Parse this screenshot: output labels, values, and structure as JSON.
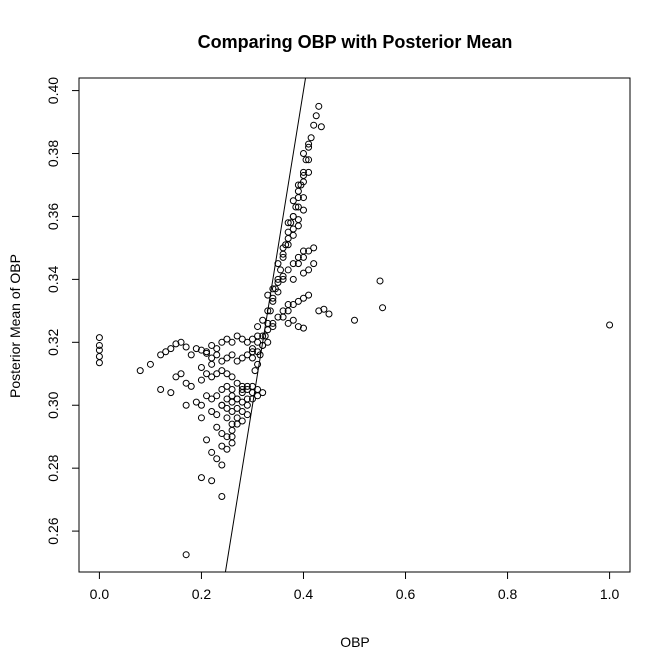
{
  "chart_data": {
    "type": "scatter",
    "title": "Comparing OBP with Posterior Mean",
    "xlabel": "OBP",
    "ylabel": "Posterior Mean of OBP",
    "xlim": [
      -0.04,
      1.04
    ],
    "ylim": [
      0.247,
      0.404
    ],
    "x_ticks": [
      0.0,
      0.2,
      0.4,
      0.6,
      0.8,
      1.0
    ],
    "x_tick_labels": [
      "0.0",
      "0.2",
      "0.4",
      "0.6",
      "0.8",
      "1.0"
    ],
    "y_ticks": [
      0.26,
      0.28,
      0.3,
      0.32,
      0.34,
      0.36,
      0.38,
      0.4
    ],
    "y_tick_labels": [
      "0.26",
      "0.28",
      "0.30",
      "0.32",
      "0.34",
      "0.36",
      "0.38",
      "0.40"
    ],
    "grid": false,
    "legend": "none",
    "reference_line": {
      "slope": 1,
      "intercept": 0
    },
    "series": [
      {
        "marker": "open-circle",
        "x": [
          0.0,
          0.0,
          0.0,
          0.0,
          0.0,
          0.08,
          0.1,
          0.12,
          0.13,
          0.14,
          0.15,
          0.16,
          0.17,
          0.18,
          0.19,
          0.2,
          0.21,
          0.22,
          0.23,
          0.12,
          0.14,
          0.15,
          0.16,
          0.17,
          0.18,
          0.2,
          0.21,
          0.22,
          0.23,
          0.24,
          0.25,
          0.26,
          0.17,
          0.19,
          0.21,
          0.22,
          0.23,
          0.24,
          0.25,
          0.26,
          0.27,
          0.28,
          0.2,
          0.22,
          0.23,
          0.24,
          0.25,
          0.26,
          0.27,
          0.28,
          0.29,
          0.24,
          0.25,
          0.26,
          0.27,
          0.28,
          0.29,
          0.3,
          0.25,
          0.26,
          0.27,
          0.28,
          0.29,
          0.3,
          0.31,
          0.26,
          0.27,
          0.28,
          0.29,
          0.3,
          0.31,
          0.32,
          0.21,
          0.22,
          0.23,
          0.24,
          0.25,
          0.26,
          0.27,
          0.28,
          0.29,
          0.3,
          0.31,
          0.2,
          0.22,
          0.24,
          0.25,
          0.26,
          0.27,
          0.28,
          0.29,
          0.3,
          0.23,
          0.24,
          0.25,
          0.26,
          0.27,
          0.28,
          0.29,
          0.21,
          0.22,
          0.23,
          0.24,
          0.25,
          0.26,
          0.2,
          0.22,
          0.24,
          0.26,
          0.17,
          0.24,
          0.2,
          0.3,
          0.31,
          0.32,
          0.33,
          0.34,
          0.35,
          0.36,
          0.37,
          0.31,
          0.32,
          0.33,
          0.34,
          0.35,
          0.36,
          0.3,
          0.31,
          0.32,
          0.33,
          0.34,
          0.36,
          0.37,
          0.38,
          0.39,
          0.4,
          0.37,
          0.38,
          0.39,
          0.4,
          0.41,
          0.38,
          0.4,
          0.41,
          0.42,
          0.39,
          0.4,
          0.41,
          0.42,
          0.43,
          0.44,
          0.45,
          0.5,
          0.55,
          0.555,
          1.0,
          0.33,
          0.34,
          0.35,
          0.36,
          0.37,
          0.38,
          0.39,
          0.4,
          0.35,
          0.36,
          0.37,
          0.38,
          0.39,
          0.36,
          0.37,
          0.38,
          0.39,
          0.4,
          0.37,
          0.38,
          0.39,
          0.4,
          0.38,
          0.39,
          0.4,
          0.41,
          0.39,
          0.4,
          0.41,
          0.4,
          0.41
        ],
        "y": [
          0.3215,
          0.319,
          0.3175,
          0.3155,
          0.3135,
          0.311,
          0.313,
          0.316,
          0.317,
          0.318,
          0.3195,
          0.32,
          0.3185,
          0.316,
          0.318,
          0.3175,
          0.3165,
          0.315,
          0.316,
          0.305,
          0.304,
          0.309,
          0.31,
          0.307,
          0.306,
          0.308,
          0.31,
          0.309,
          0.31,
          0.311,
          0.31,
          0.309,
          0.3,
          0.301,
          0.303,
          0.302,
          0.303,
          0.305,
          0.306,
          0.305,
          0.307,
          0.306,
          0.3,
          0.298,
          0.297,
          0.3,
          0.302,
          0.303,
          0.302,
          0.305,
          0.306,
          0.3,
          0.299,
          0.301,
          0.302,
          0.304,
          0.305,
          0.306,
          0.296,
          0.298,
          0.299,
          0.301,
          0.302,
          0.304,
          0.305,
          0.294,
          0.296,
          0.298,
          0.3,
          0.302,
          0.303,
          0.304,
          0.317,
          0.319,
          0.318,
          0.32,
          0.321,
          0.32,
          0.322,
          0.321,
          0.32,
          0.321,
          0.322,
          0.312,
          0.313,
          0.314,
          0.315,
          0.316,
          0.314,
          0.315,
          0.316,
          0.317,
          0.293,
          0.291,
          0.29,
          0.292,
          0.294,
          0.295,
          0.297,
          0.289,
          0.285,
          0.283,
          0.287,
          0.286,
          0.288,
          0.277,
          0.276,
          0.271,
          0.29,
          0.2525,
          0.281,
          0.296,
          0.318,
          0.32,
          0.322,
          0.324,
          0.326,
          0.328,
          0.33,
          0.332,
          0.325,
          0.327,
          0.33,
          0.333,
          0.336,
          0.34,
          0.315,
          0.317,
          0.319,
          0.32,
          0.325,
          0.328,
          0.326,
          0.327,
          0.325,
          0.3245,
          0.33,
          0.332,
          0.333,
          0.334,
          0.335,
          0.34,
          0.342,
          0.343,
          0.345,
          0.345,
          0.347,
          0.349,
          0.35,
          0.33,
          0.3305,
          0.329,
          0.327,
          0.3395,
          0.331,
          0.3255,
          0.335,
          0.337,
          0.339,
          0.341,
          0.343,
          0.345,
          0.347,
          0.349,
          0.345,
          0.348,
          0.351,
          0.354,
          0.357,
          0.35,
          0.353,
          0.356,
          0.359,
          0.362,
          0.358,
          0.36,
          0.363,
          0.366,
          0.365,
          0.368,
          0.371,
          0.374,
          0.37,
          0.373,
          0.378,
          0.38,
          0.383
        ]
      },
      {
        "marker": "open-circle",
        "x": [
          0.305,
          0.31,
          0.315,
          0.32,
          0.325,
          0.33,
          0.335,
          0.34,
          0.345,
          0.35,
          0.355,
          0.36,
          0.365,
          0.37,
          0.375,
          0.38,
          0.385,
          0.39,
          0.395,
          0.4,
          0.405,
          0.41,
          0.415,
          0.42,
          0.425,
          0.43,
          0.435
        ],
        "y": [
          0.311,
          0.313,
          0.316,
          0.319,
          0.322,
          0.326,
          0.33,
          0.334,
          0.337,
          0.34,
          0.343,
          0.347,
          0.351,
          0.355,
          0.358,
          0.36,
          0.363,
          0.366,
          0.37,
          0.374,
          0.378,
          0.382,
          0.385,
          0.389,
          0.392,
          0.395,
          0.3885
        ]
      }
    ]
  }
}
